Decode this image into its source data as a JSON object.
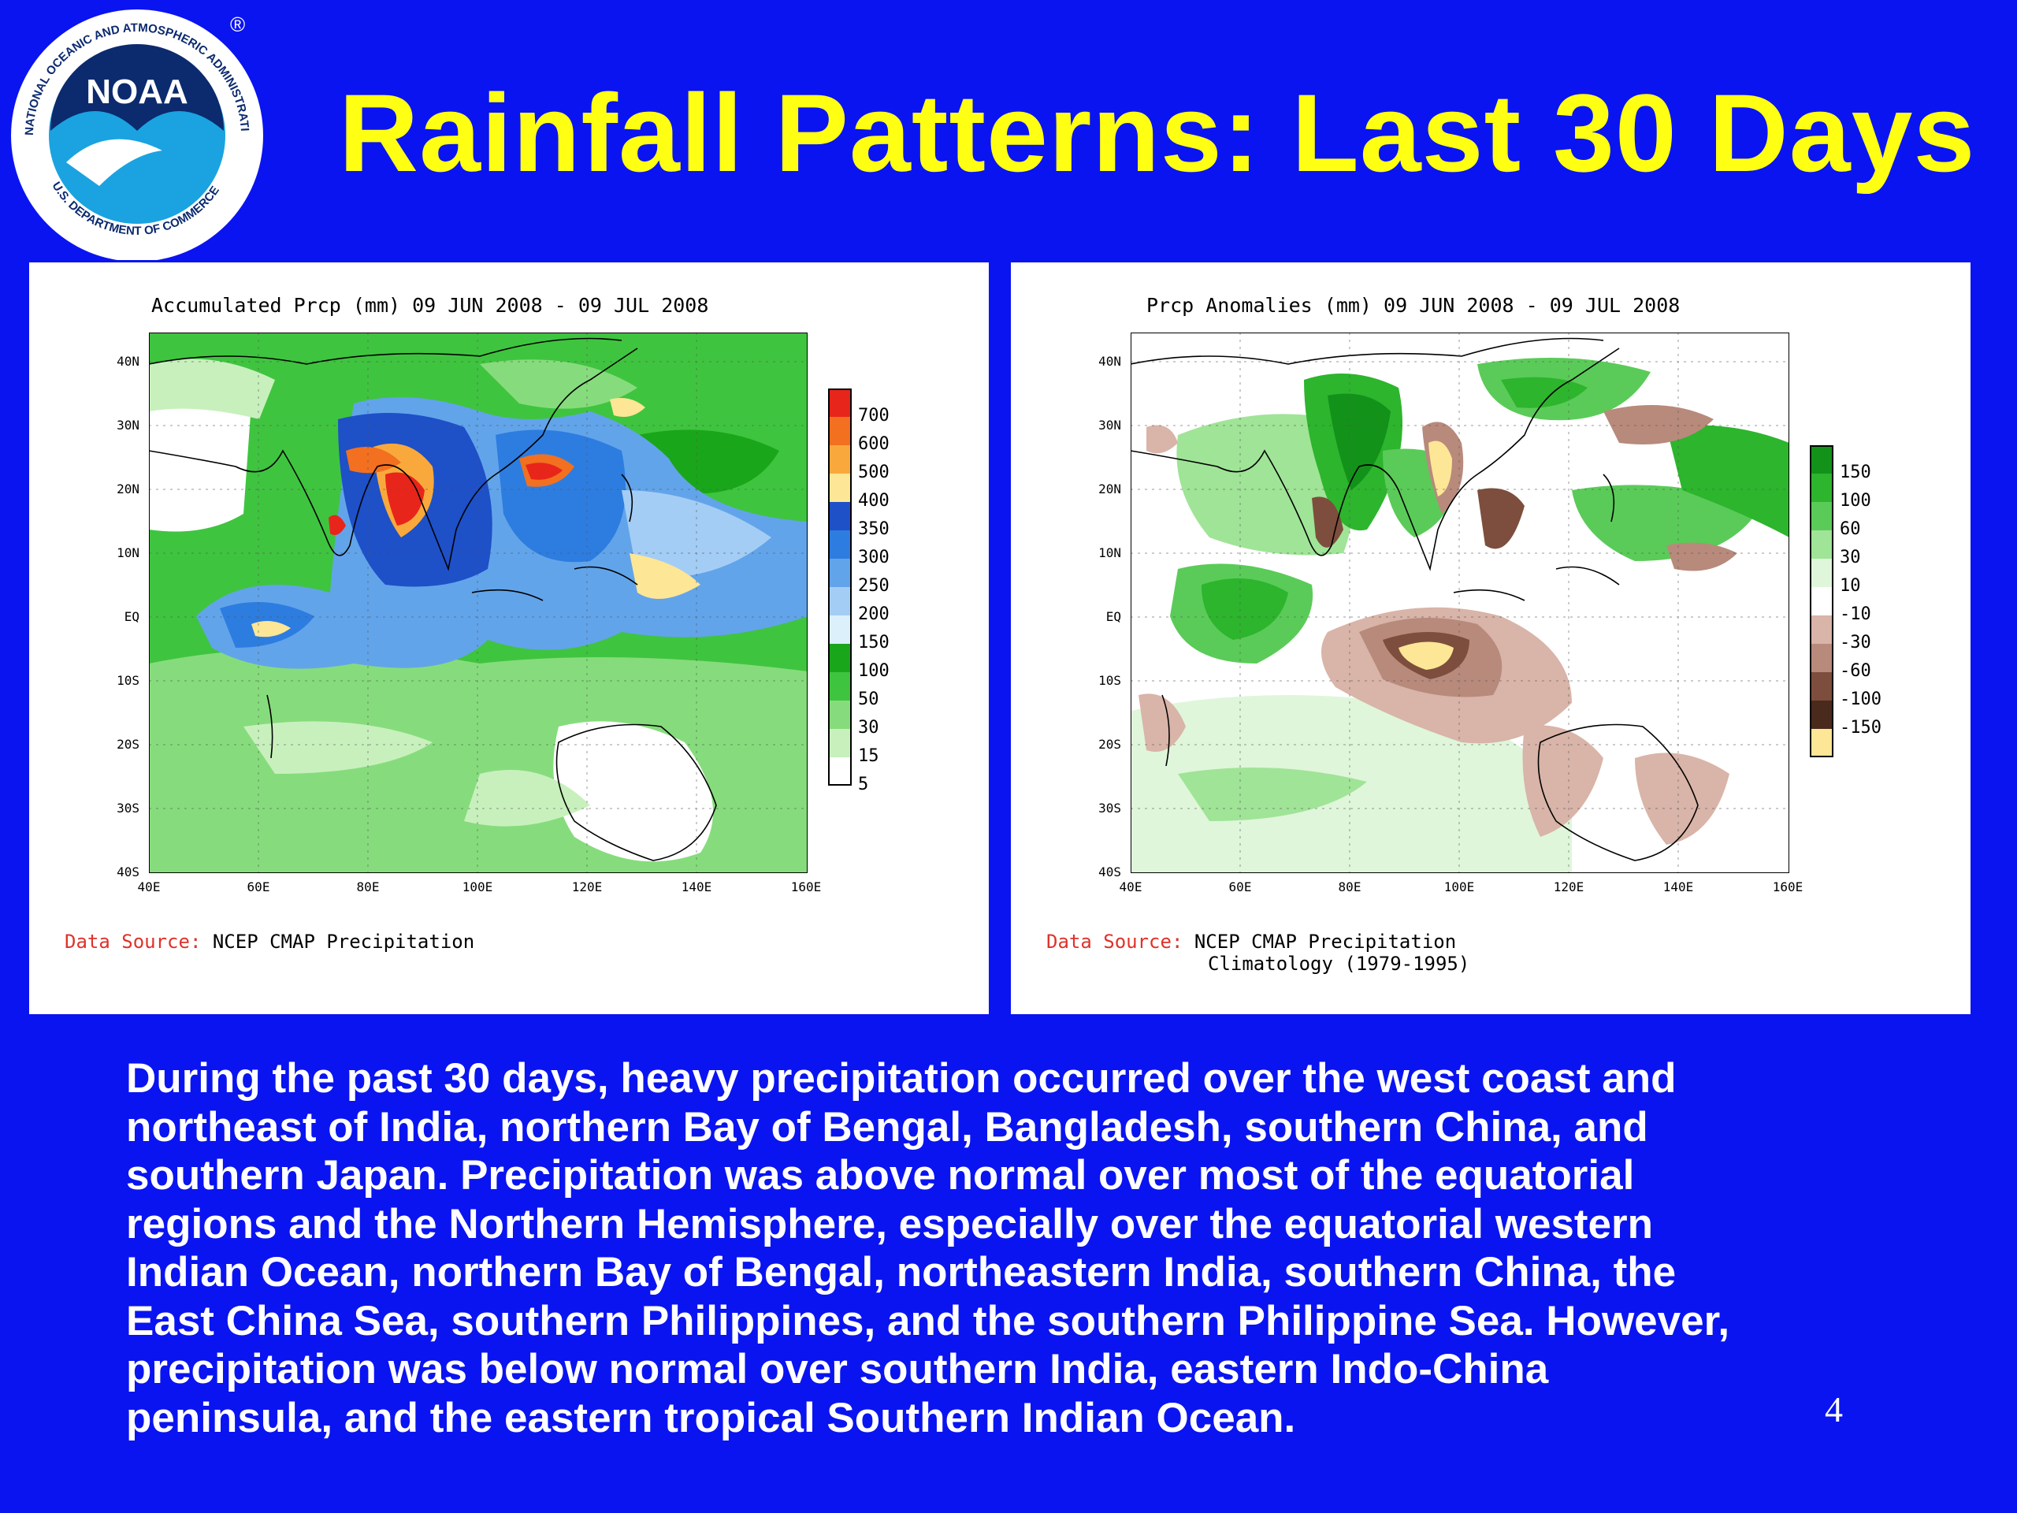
{
  "slide": {
    "title": "Rainfall Patterns: Last 30 Days",
    "page_number": "4",
    "logo": {
      "text": "NOAA",
      "ring_text": "NATIONAL OCEANIC AND ATMOSPHERIC ADMINISTRATION",
      "bottom_text": "U.S. DEPARTMENT OF COMMERCE",
      "registered": "®"
    },
    "body_lines": [
      "During the past 30 days, heavy precipitation occurred over the west coast and",
      "northeast of India, northern Bay of Bengal, Bangladesh, southern China, and",
      "southern Japan. Precipitation was above normal over  most of the equatorial",
      "regions and the Northern Hemisphere, especially over the equatorial western",
      "Indian Ocean, northern Bay of Bengal, northeastern India, southern China, the",
      "East China Sea, southern Philippines, and the southern Philippine Sea. However,",
      "precipitation was below normal over southern India, eastern Indo-China",
      "peninsula, and the eastern tropical Southern Indian Ocean."
    ]
  },
  "maps": [
    {
      "title": "Accumulated Prcp (mm) 09 JUN 2008 - 09 JUL 2008",
      "lat_labels": [
        "40N",
        "30N",
        "20N",
        "10N",
        "EQ",
        "10S",
        "20S",
        "30S",
        "40S"
      ],
      "lon_labels": [
        "40E",
        "60E",
        "80E",
        "100E",
        "120E",
        "140E",
        "160E"
      ],
      "legend": {
        "labels": [
          "700",
          "600",
          "500",
          "400",
          "350",
          "300",
          "250",
          "200",
          "150",
          "100",
          "50",
          "30",
          "15",
          "5"
        ],
        "colors": [
          "#e8251b",
          "#f2701f",
          "#f9a93b",
          "#fde695",
          "#1e50c8",
          "#2d7de0",
          "#62a4ea",
          "#a4cdf5",
          "#dcf0fb",
          "#1aa61a",
          "#3fc43f",
          "#86dc7c",
          "#c8f0bd",
          "#ffffff"
        ]
      },
      "source_key": "Data Source:",
      "source_value": "NCEP CMAP Precipitation",
      "source_extra": ""
    },
    {
      "title": "Prcp Anomalies (mm) 09 JUN 2008 - 09 JUL 2008",
      "lat_labels": [
        "40N",
        "30N",
        "20N",
        "10N",
        "EQ",
        "10S",
        "20S",
        "30S",
        "40S"
      ],
      "lon_labels": [
        "40E",
        "60E",
        "80E",
        "100E",
        "120E",
        "140E",
        "160E"
      ],
      "legend": {
        "labels": [
          "150",
          "100",
          "60",
          "30",
          "10",
          "-10",
          "-30",
          "-60",
          "-100",
          "-150"
        ],
        "colors": [
          "#13921a",
          "#2db52d",
          "#5acb58",
          "#a0e497",
          "#dff6da",
          "#ffffff",
          "#d9b4a8",
          "#b88a7c",
          "#7d4e3d",
          "#4a2a1c",
          "#fde695"
        ]
      },
      "source_key": "Data Source:",
      "source_value": "NCEP CMAP Precipitation",
      "source_extra": "Climatology (1979-1995)"
    }
  ]
}
